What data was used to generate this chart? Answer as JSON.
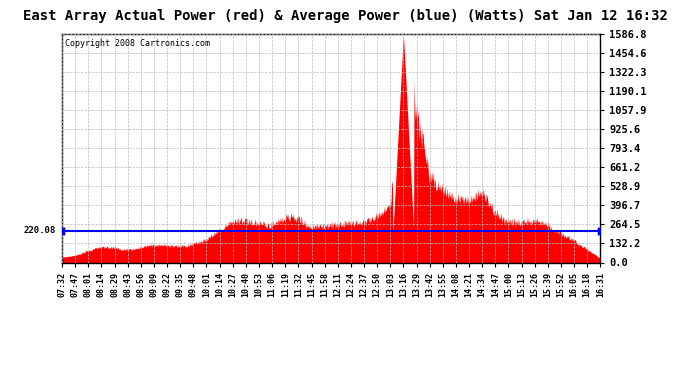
{
  "title": "East Array Actual Power (red) & Average Power (blue) (Watts) Sat Jan 12 16:32",
  "copyright": "Copyright 2008 Cartronics.com",
  "avg_power": 220.08,
  "ymax": 1586.8,
  "yticks": [
    0.0,
    132.2,
    264.5,
    396.7,
    528.9,
    661.2,
    793.4,
    925.6,
    1057.9,
    1190.1,
    1322.3,
    1454.6,
    1586.8
  ],
  "bg_color": "#ffffff",
  "grid_color": "#bbbbbb",
  "avg_line_color": "blue",
  "fill_color": "red",
  "title_fontsize": 10,
  "copyright_fontsize": 6,
  "xtick_labels": [
    "07:32",
    "07:47",
    "08:01",
    "08:14",
    "08:29",
    "08:43",
    "08:56",
    "09:09",
    "09:22",
    "09:35",
    "09:48",
    "10:01",
    "10:14",
    "10:27",
    "10:40",
    "10:53",
    "11:06",
    "11:19",
    "11:32",
    "11:45",
    "11:58",
    "12:11",
    "12:24",
    "12:37",
    "12:50",
    "13:03",
    "13:16",
    "13:29",
    "13:42",
    "13:55",
    "14:08",
    "14:21",
    "14:34",
    "14:47",
    "15:00",
    "15:13",
    "15:26",
    "15:39",
    "15:52",
    "16:05",
    "16:18",
    "16:31"
  ],
  "keypoints_x": [
    0,
    1,
    2,
    3,
    4,
    5,
    6,
    7,
    8,
    9,
    10,
    11,
    12,
    13,
    14,
    15,
    16,
    17,
    18,
    19,
    20,
    21,
    22,
    23,
    24,
    25,
    26,
    27,
    28,
    29,
    30,
    31,
    32,
    33,
    34,
    35,
    36,
    37,
    38,
    39,
    40,
    41
  ],
  "keypoints_y": [
    35,
    50,
    80,
    100,
    100,
    90,
    100,
    110,
    120,
    130,
    140,
    160,
    200,
    240,
    260,
    290,
    280,
    300,
    310,
    280,
    300,
    290,
    310,
    320,
    350,
    380,
    1586,
    900,
    530,
    490,
    430,
    380,
    430,
    350,
    310,
    280,
    270,
    240,
    200,
    160,
    100,
    30
  ]
}
